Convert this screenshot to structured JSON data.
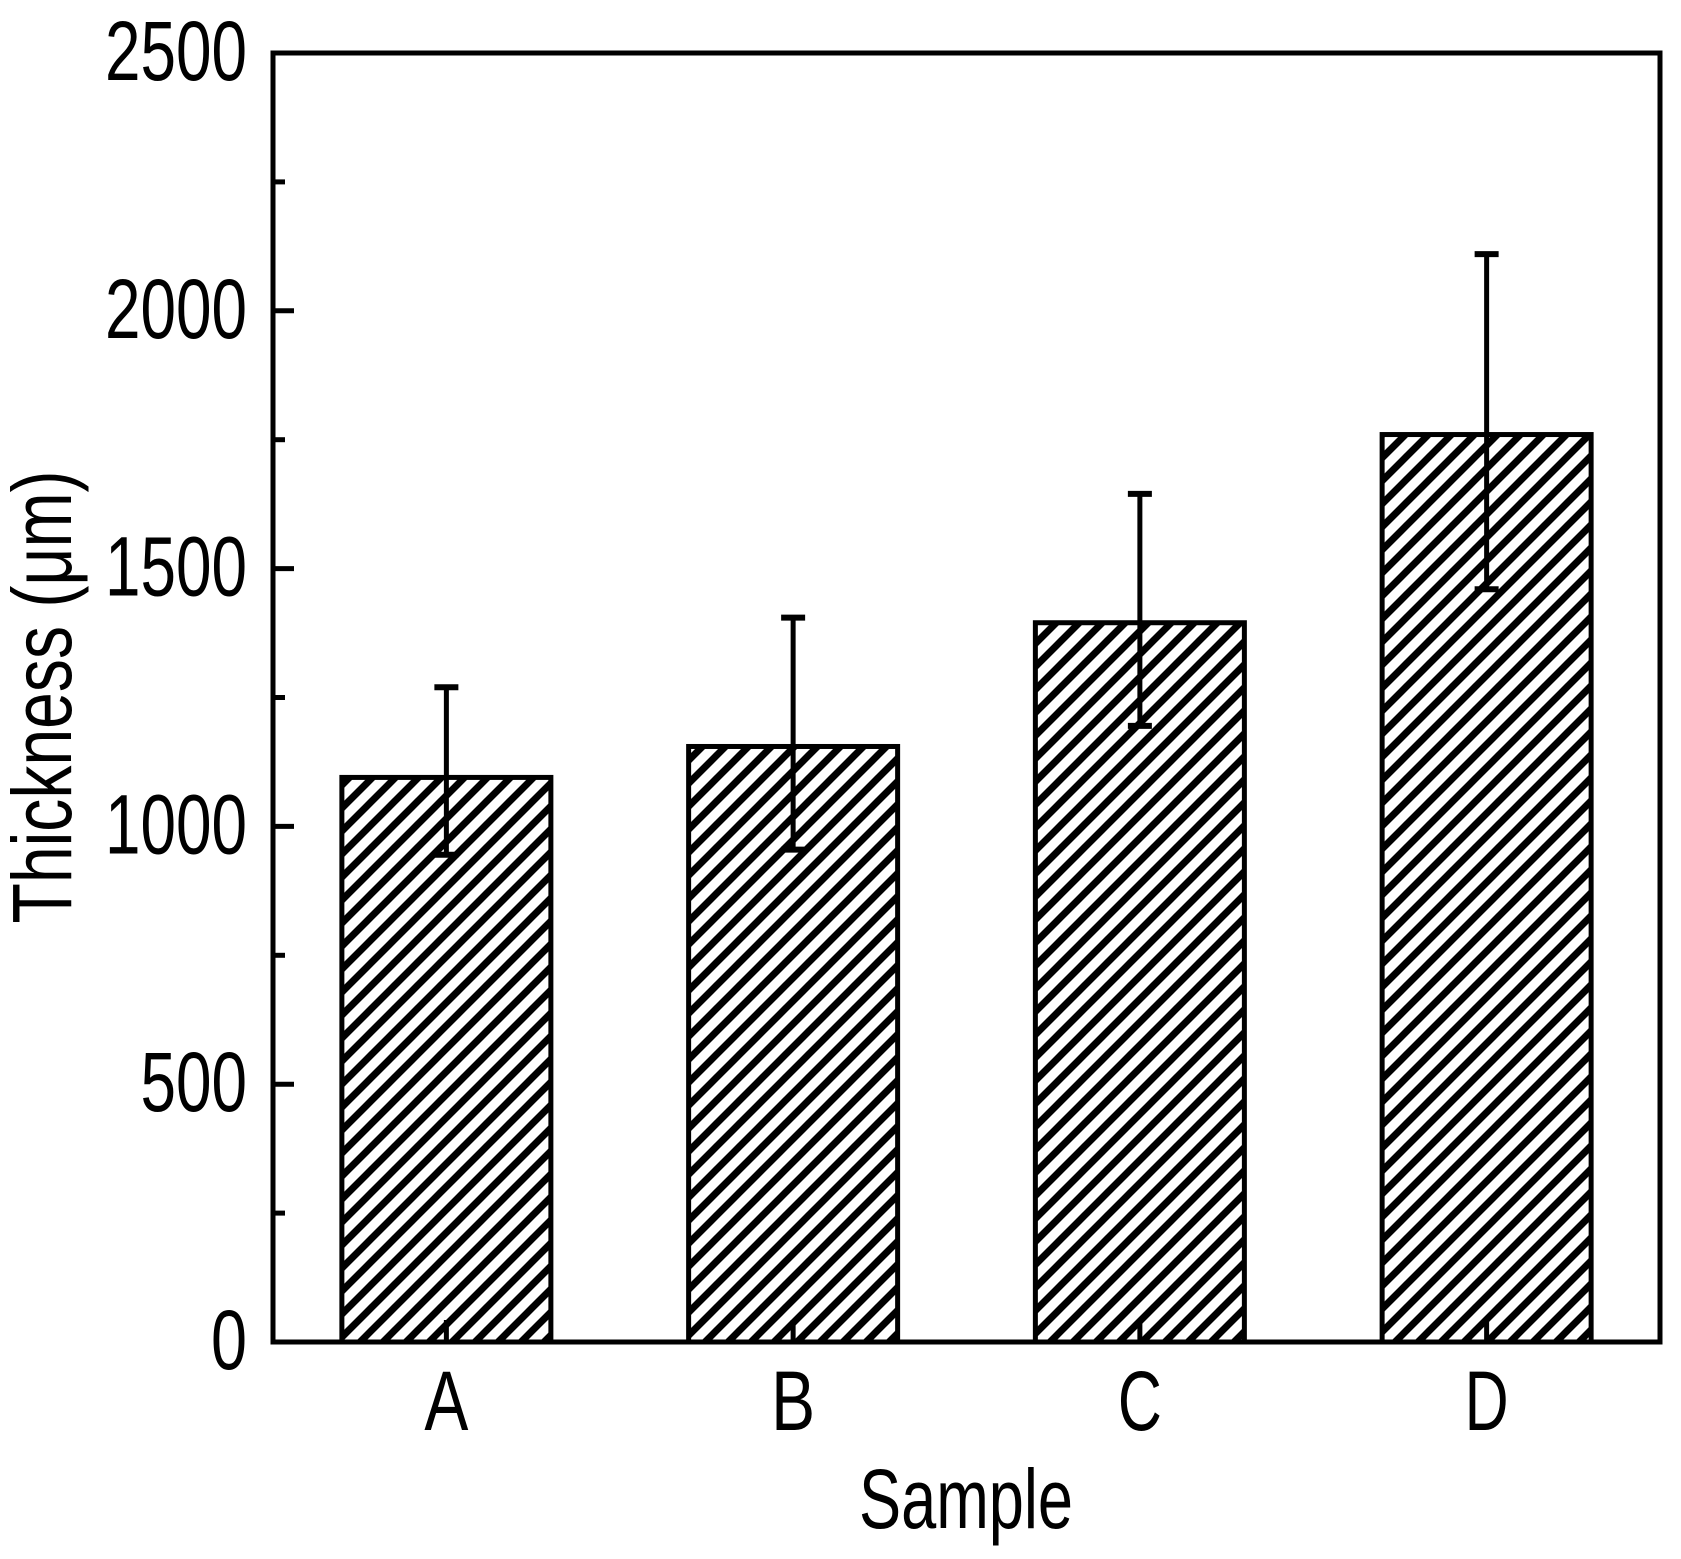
{
  "page": {
    "background_color": "#ffffff",
    "foreground_color": "#000000"
  },
  "chart_data": {
    "type": "bar",
    "title": "",
    "categories": [
      "A",
      "B",
      "C",
      "D"
    ],
    "values": [
      1095,
      1155,
      1395,
      1760
    ],
    "error_plus": [
      175,
      250,
      250,
      350
    ],
    "error_minus": [
      150,
      200,
      200,
      300
    ],
    "xlabel": "Sample",
    "ylabel": "Thickness (μm)",
    "ylim": [
      0,
      2500
    ],
    "ytick_major_step": 500,
    "ytick_minor_step": 250,
    "ytick_labels": [
      "0",
      "500",
      "1000",
      "1500",
      "2000",
      "2500"
    ],
    "legend_position": "none",
    "grid": "off",
    "frame": "full-box",
    "tick_direction": "in",
    "bar_style": {
      "fill_pattern": "diagonal-hatch",
      "hatch_direction": "forward-slash",
      "outline_color": "#000000",
      "fill_background": "#ffffff"
    },
    "axis_color": "#000000",
    "text_color": "#000000"
  }
}
